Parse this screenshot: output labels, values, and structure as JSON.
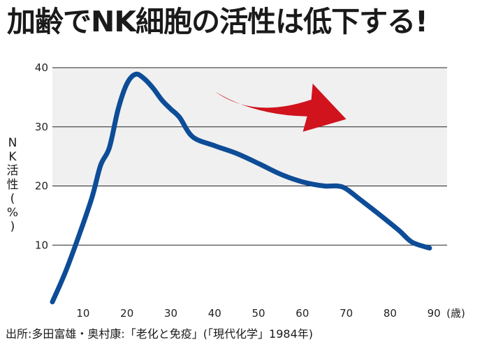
{
  "title": "加齢でNK細胞の活性は低下する!",
  "source": "出所:多田富雄・奥村康:「老化と免疫」(「現代化学」1984年)",
  "chart_data": {
    "type": "line",
    "ylabel": "NK活性(%)",
    "xunit": "(歳)",
    "xlim": [
      3,
      93
    ],
    "ylim": [
      0,
      40
    ],
    "xticks": [
      10,
      20,
      30,
      40,
      50,
      60,
      70,
      80,
      90
    ],
    "yticks": [
      10,
      20,
      30,
      40
    ],
    "grid": true,
    "series": [
      {
        "color": "#0d4c97",
        "x": [
          3,
          6,
          9,
          12,
          14,
          16,
          18,
          20,
          22,
          24,
          26,
          28,
          30,
          32,
          35,
          40,
          45,
          50,
          55,
          60,
          65,
          68,
          70,
          73,
          77,
          82,
          85,
          89
        ],
        "y": [
          0.4,
          5.5,
          11.5,
          18,
          23.5,
          26.5,
          33,
          37.3,
          38.9,
          38.1,
          36.5,
          34.5,
          33,
          31.6,
          28.3,
          26.8,
          25.5,
          23.8,
          22,
          20.7,
          20,
          20,
          19.5,
          17.8,
          15.5,
          12.5,
          10.5,
          9.5
        ]
      }
    ],
    "arrow": {
      "color": "#d0131c",
      "from": [
        40,
        36
      ],
      "to": [
        70,
        32
      ]
    },
    "band_color": "#f0f0f0"
  }
}
